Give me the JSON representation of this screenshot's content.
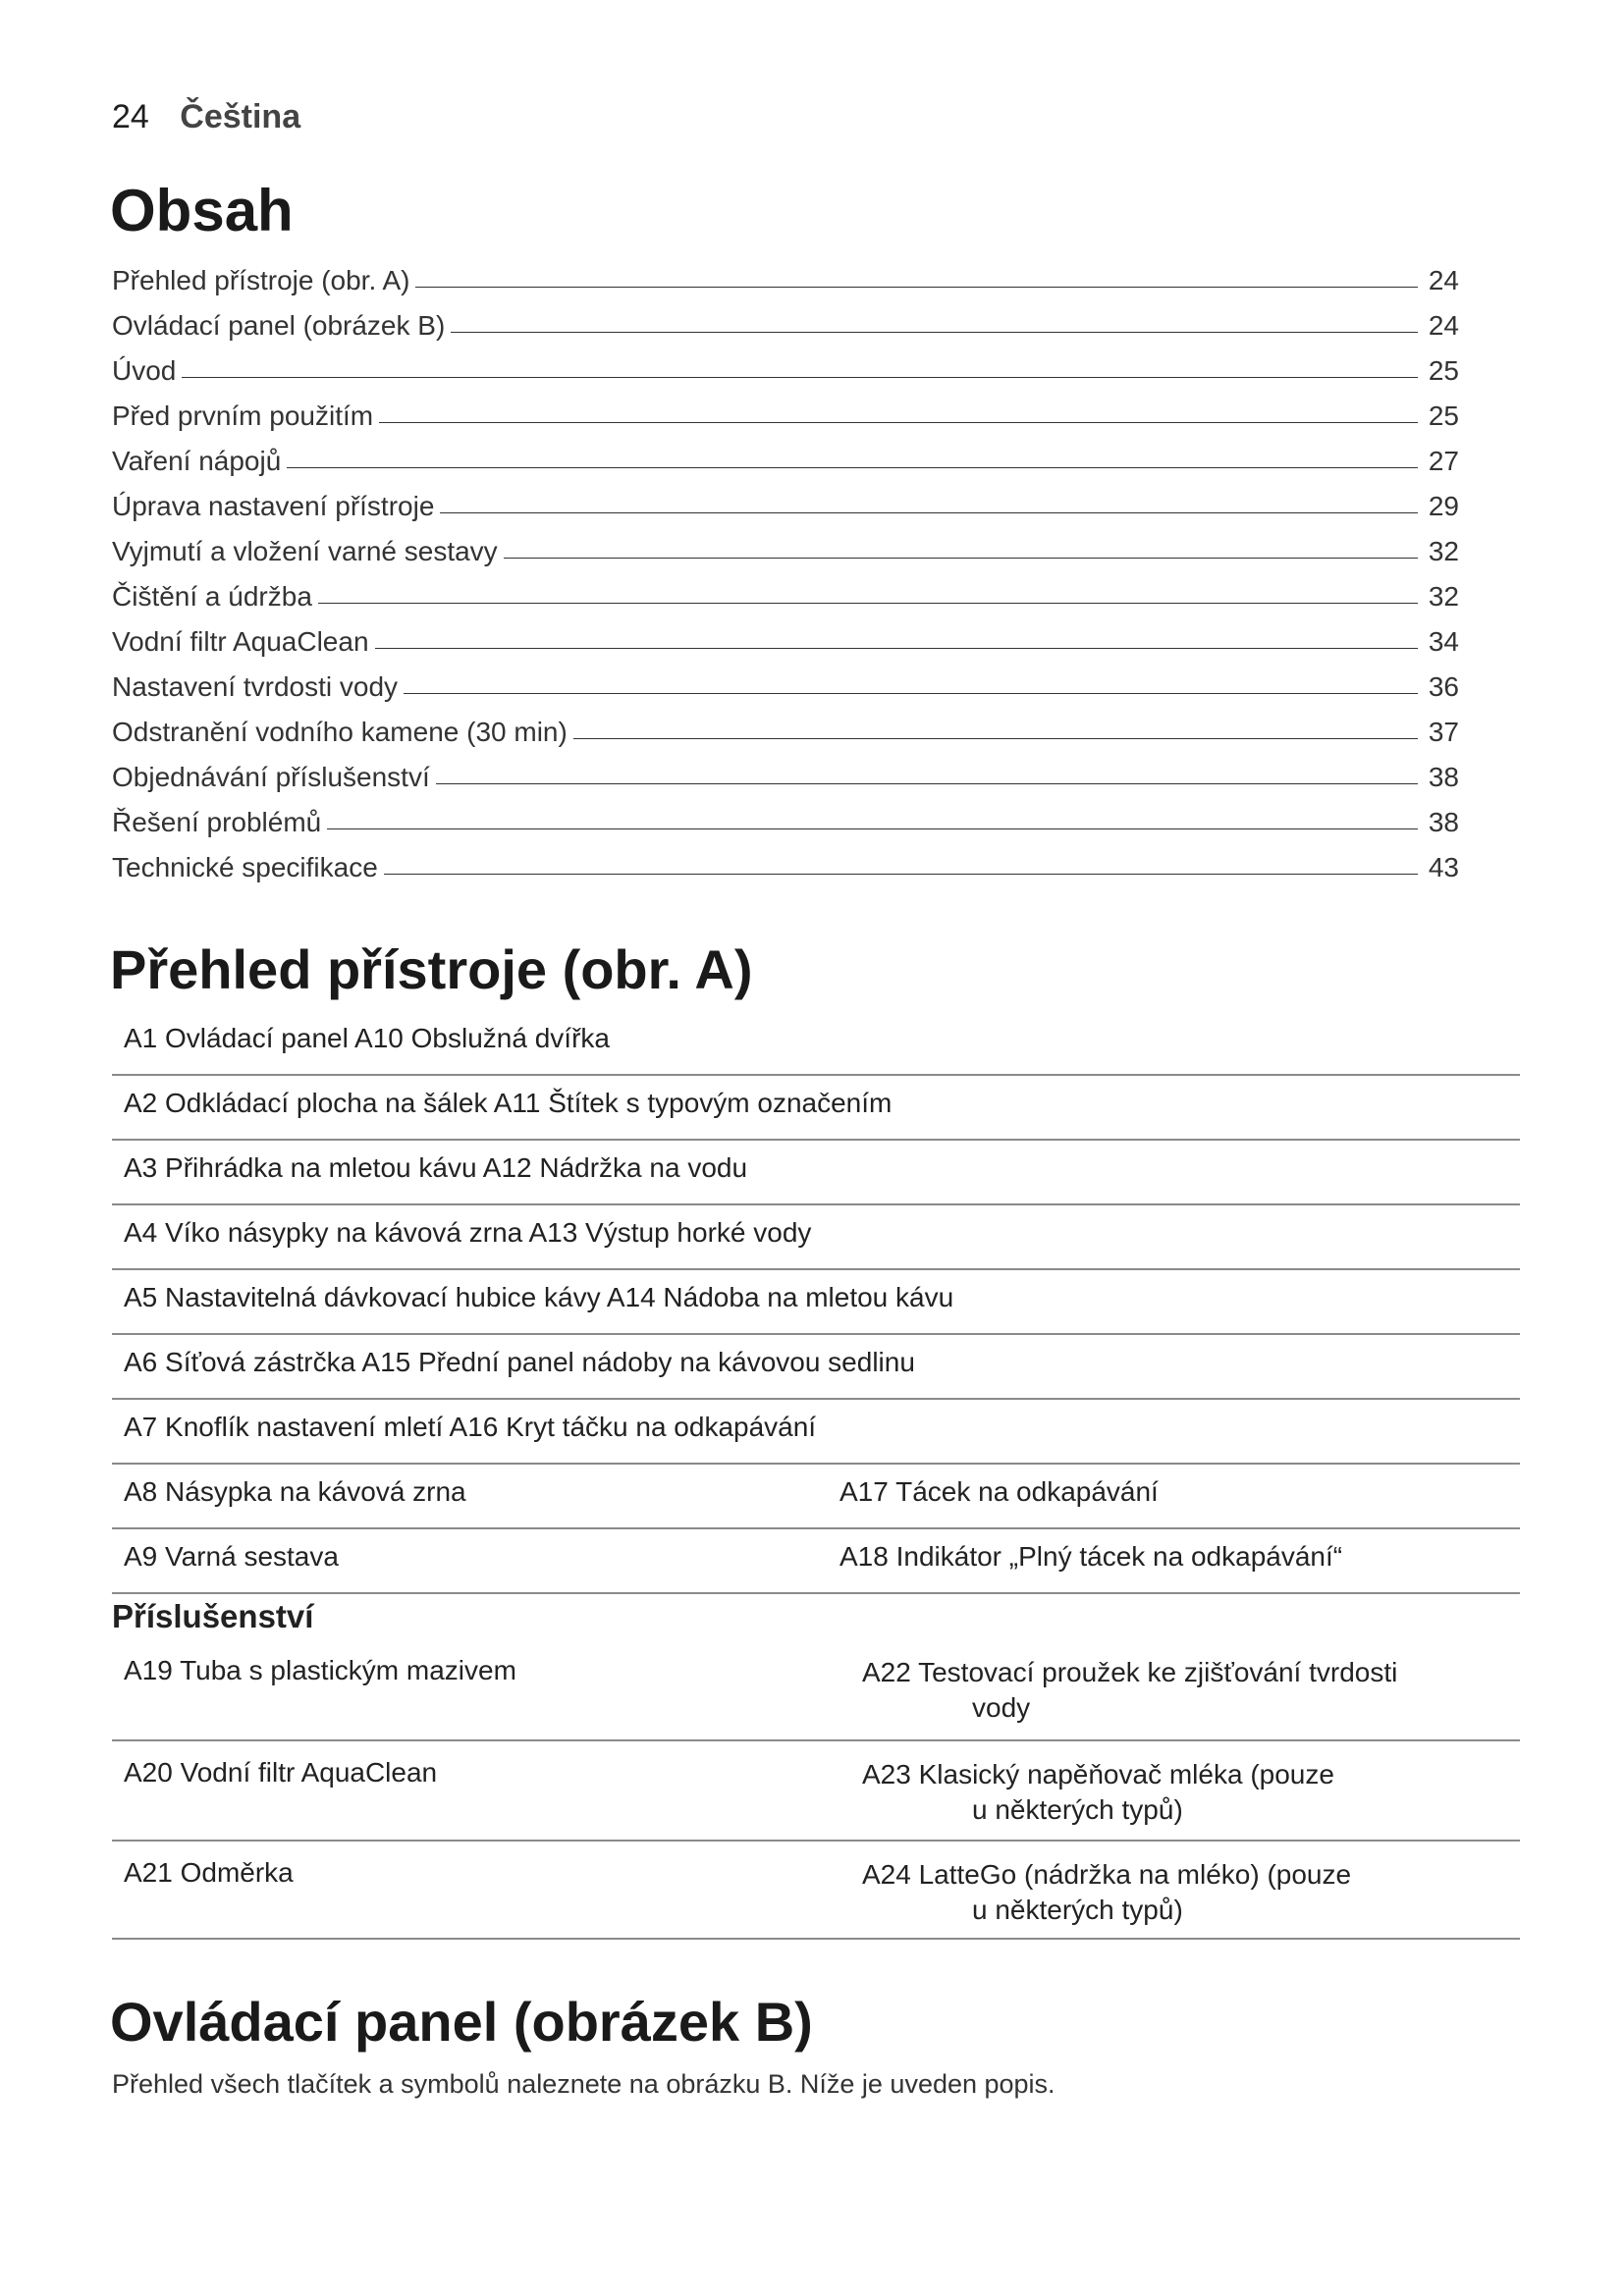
{
  "header": {
    "page_number": "24",
    "language": "Čeština"
  },
  "toc": {
    "title": "Obsah",
    "entries": [
      {
        "label": "Přehled přístroje (obr. A)",
        "page": "24"
      },
      {
        "label": "Ovládací panel (obrázek B)",
        "page": "24"
      },
      {
        "label": "Úvod",
        "page": "25"
      },
      {
        "label": "Před prvním použitím",
        "page": "25"
      },
      {
        "label": "Vaření nápojů",
        "page": "27"
      },
      {
        "label": "Úprava nastavení přístroje",
        "page": "29"
      },
      {
        "label": "Vyjmutí a vložení varné sestavy",
        "page": "32"
      },
      {
        "label": "Čištění a údržba",
        "page": "32"
      },
      {
        "label": "Vodní filtr AquaClean",
        "page": "34"
      },
      {
        "label": "Nastavení tvrdosti vody",
        "page": "36"
      },
      {
        "label": "Odstranění vodního kamene (30 min)",
        "page": "37"
      },
      {
        "label": "Objednávání příslušenství",
        "page": "38"
      },
      {
        "label": "Řešení problémů",
        "page": "38"
      },
      {
        "label": "Technické specifikace",
        "page": "43"
      }
    ]
  },
  "overview": {
    "title": "Přehled přístroje (obr. A)",
    "rows": [
      [
        "A1 Ovládací panel A10 Obslužná dvířka",
        ""
      ],
      [
        "A2 Odkládací plocha na šálek A11 Štítek s typovým označením",
        ""
      ],
      [
        "A3 Přihrádka na mletou kávu A12 Nádržka na vodu",
        ""
      ],
      [
        "A4 Víko násypky na kávová zrna A13 Výstup horké vody",
        ""
      ],
      [
        "A5 Nastavitelná dávkovací hubice kávy A14 Nádoba na mletou kávu",
        ""
      ],
      [
        "A6 Síťová zástrčka A15  Přední panel nádoby na kávovou sedlinu",
        ""
      ],
      [
        "A7 Knoflík nastavení mletí A16 Kryt táčku na odkapávání",
        ""
      ],
      [
        "A8 Násypka na kávová zrna",
        "A17 Tácek na odkapávání"
      ],
      [
        "A9 Varná sestava",
        "A18 Indikátor „Plný tácek na odkapávání“"
      ]
    ]
  },
  "accessories": {
    "title": "Příslušenství",
    "rows": [
      [
        "A19 Tuba s plastickým mazivem",
        "A22 Testovací proužek ke zjišťování tvrdosti",
        "vody"
      ],
      [
        "A20 Vodní filtr AquaClean",
        "A23 Klasický napěňovač mléka (pouze",
        "u některých typů)"
      ],
      [
        "A21 Odměrka",
        "A24 LatteGo (nádržka na mléko) (pouze",
        "u některých typů)"
      ]
    ]
  },
  "control_panel": {
    "title": "Ovládací panel (obrázek B)",
    "text": "Přehled všech tlačítek a symbolů naleznete na obrázku B. Níže je uveden popis."
  }
}
